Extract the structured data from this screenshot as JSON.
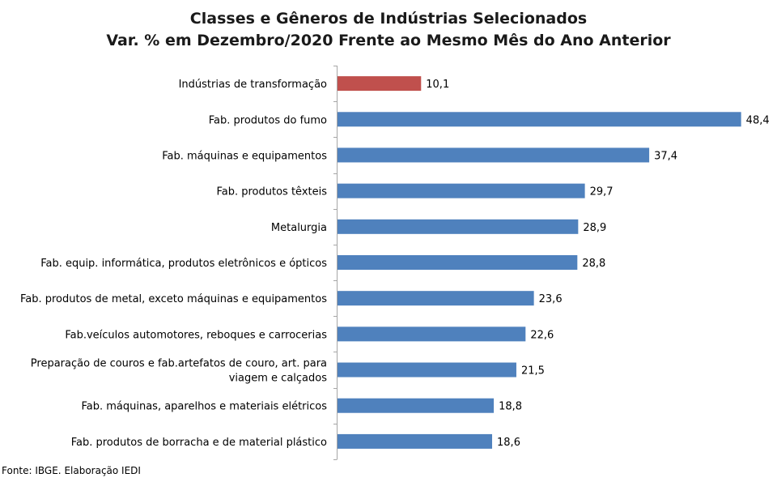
{
  "chart_data": {
    "type": "bar",
    "orientation": "horizontal",
    "title": "Classes e Gêneros de Indústrias Selecionados",
    "subtitle": "Var. % em Dezembro/2020 Frente ao Mesmo Mês do Ano Anterior",
    "categories": [
      [
        "Indústrias de transformação"
      ],
      [
        "Fab. produtos do fumo"
      ],
      [
        "Fab. máquinas e equipamentos"
      ],
      [
        "Fab. produtos têxteis"
      ],
      [
        "Metalurgia"
      ],
      [
        "Fab. equip. informática, produtos eletrônicos e ópticos"
      ],
      [
        "Fab. produtos de metal, exceto máquinas e equipamentos"
      ],
      [
        "Fab.veículos automotores, reboques e carrocerias"
      ],
      [
        "Preparação de couros e fab.artefatos de couro, art. para",
        "viagem e calçados"
      ],
      [
        "Fab. máquinas, aparelhos e materiais elétricos"
      ],
      [
        "Fab. produtos de borracha e de material plástico"
      ]
    ],
    "values": [
      10.1,
      48.4,
      37.4,
      29.7,
      28.9,
      28.8,
      23.6,
      22.6,
      21.5,
      18.8,
      18.6
    ],
    "value_labels": [
      "10,1",
      "48,4",
      "37,4",
      "29,7",
      "28,9",
      "28,8",
      "23,6",
      "22,6",
      "21,5",
      "18,8",
      "18,6"
    ],
    "highlight_index": 0,
    "colors": {
      "highlight": "#C0504D",
      "default": "#4F81BD",
      "axis": "#A6A6A6"
    },
    "xlim": [
      0,
      52.5
    ],
    "grid": false,
    "legend": "none"
  },
  "source": "Fonte: IBGE. Elaboração IEDI"
}
